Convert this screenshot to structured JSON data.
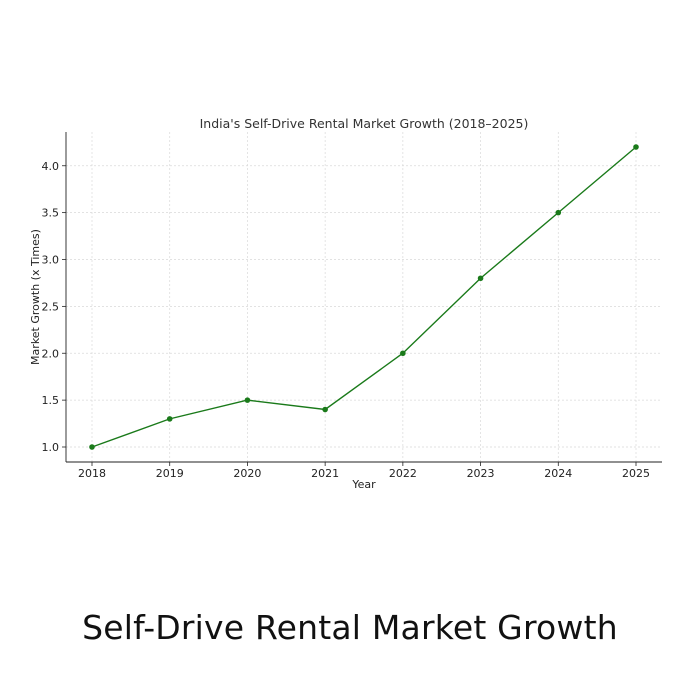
{
  "caption": "Self-Drive Rental Market Growth",
  "chart_data": {
    "type": "line",
    "title": "India's Self-Drive Rental Market Growth (2018–2025)",
    "xlabel": "Year",
    "ylabel": "Market Growth (x Times)",
    "x": [
      "2018",
      "2019",
      "2020",
      "2021",
      "2022",
      "2023",
      "2024",
      "2025"
    ],
    "series": [
      {
        "values": [
          1.0,
          1.3,
          1.5,
          1.4,
          2.0,
          2.8,
          3.5,
          4.2
        ],
        "color": "#1a7a1a"
      }
    ],
    "yticks": [
      "1.0",
      "1.5",
      "2.0",
      "2.5",
      "3.0",
      "3.5",
      "4.0"
    ],
    "ylim": [
      0.84,
      4.36
    ],
    "grid": true,
    "marker": "circle"
  }
}
